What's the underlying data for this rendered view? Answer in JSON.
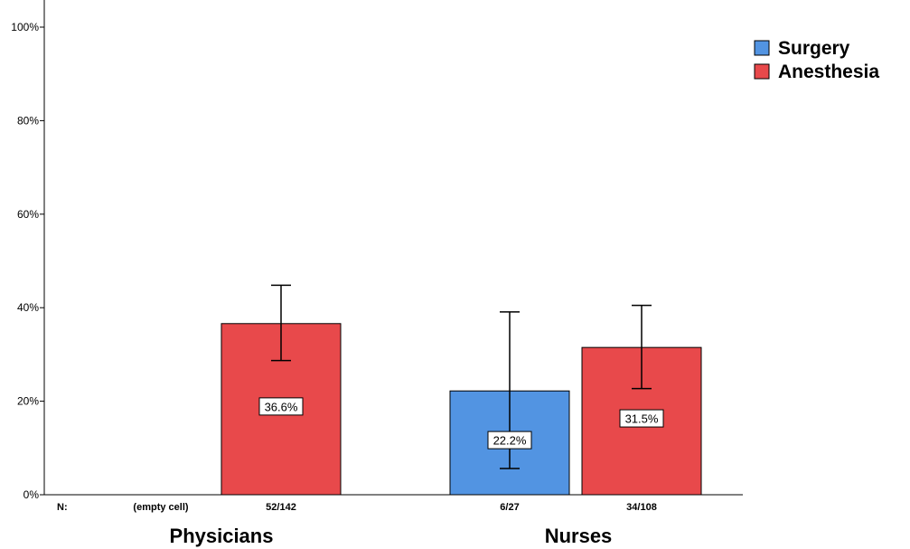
{
  "chart_data": {
    "type": "bar",
    "ylim": [
      0,
      100
    ],
    "y_ticks": [
      "0%",
      "20%",
      "40%",
      "60%",
      "80%",
      "100%"
    ],
    "y_tick_values": [
      0,
      20,
      40,
      60,
      80,
      100
    ],
    "grid": false,
    "legend_placement": "top-right",
    "n_prefix": "N:",
    "groups": [
      {
        "name": "Physicians",
        "bars": [
          {
            "series": "Surgery",
            "empty": true,
            "n_label": "(empty cell)"
          },
          {
            "series": "Anesthesia",
            "value": 36.6,
            "label": "36.6%",
            "err_low": 28.7,
            "err_high": 44.8,
            "n_label": "52/142"
          }
        ]
      },
      {
        "name": "Nurses",
        "bars": [
          {
            "series": "Surgery",
            "value": 22.2,
            "label": "22.2%",
            "err_low": 5.6,
            "err_high": 39.1,
            "n_label": "6/27"
          },
          {
            "series": "Anesthesia",
            "value": 31.5,
            "label": "31.5%",
            "err_low": 22.7,
            "err_high": 40.5,
            "n_label": "34/108"
          }
        ]
      }
    ],
    "series": [
      {
        "name": "Surgery",
        "color": "#5294e2"
      },
      {
        "name": "Anesthesia",
        "color": "#e8494b"
      }
    ]
  }
}
